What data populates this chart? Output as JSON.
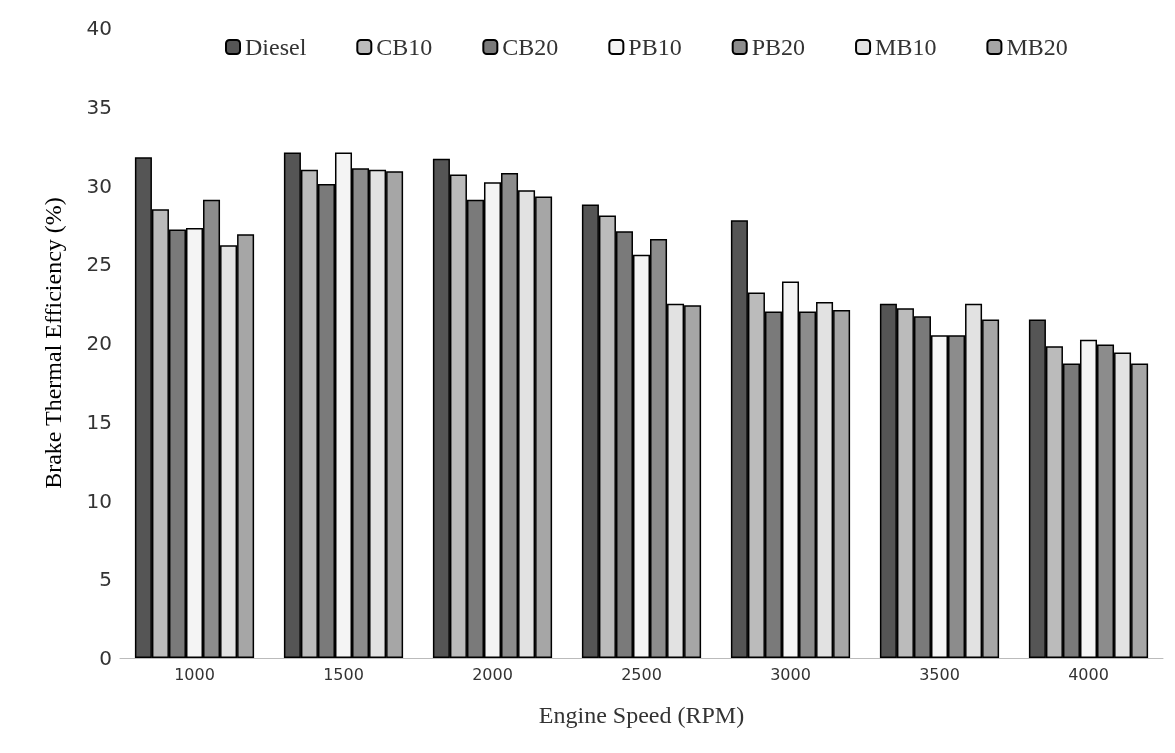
{
  "chart_data": {
    "type": "bar",
    "xlabel": "Engine Speed (RPM)",
    "ylabel": "Brake Thermal Efficiency (%)",
    "categories": [
      "1000",
      "1500",
      "2000",
      "2500",
      "3000",
      "3500",
      "4000"
    ],
    "series": [
      {
        "name": "Diesel",
        "color": "#555555",
        "values": [
          31.8,
          32.1,
          31.7,
          28.8,
          27.8,
          22.5,
          21.5
        ]
      },
      {
        "name": "CB10",
        "color": "#bbbbbb",
        "values": [
          28.5,
          31.0,
          30.7,
          28.1,
          23.2,
          22.2,
          19.8
        ]
      },
      {
        "name": "CB20",
        "color": "#7a7a7a",
        "values": [
          27.2,
          30.1,
          29.1,
          27.1,
          22.0,
          21.7,
          18.7
        ]
      },
      {
        "name": "PB10",
        "color": "#f4f4f4",
        "values": [
          27.3,
          32.1,
          30.2,
          25.6,
          23.9,
          20.5,
          20.2
        ]
      },
      {
        "name": "PB20",
        "color": "#8c8c8c",
        "values": [
          29.1,
          31.1,
          30.8,
          26.6,
          22.0,
          20.5,
          19.9
        ]
      },
      {
        "name": "MB10",
        "color": "#e2e2e2",
        "values": [
          26.2,
          31.0,
          29.7,
          22.5,
          22.6,
          22.5,
          19.4
        ]
      },
      {
        "name": "MB20",
        "color": "#a6a6a6",
        "values": [
          26.9,
          30.9,
          29.3,
          22.4,
          22.1,
          21.5,
          18.7
        ]
      }
    ],
    "ylim": [
      0,
      40
    ],
    "yticks": [
      0,
      5,
      10,
      15,
      20,
      25,
      30,
      35,
      40
    ],
    "grid": false,
    "legend": "top"
  }
}
